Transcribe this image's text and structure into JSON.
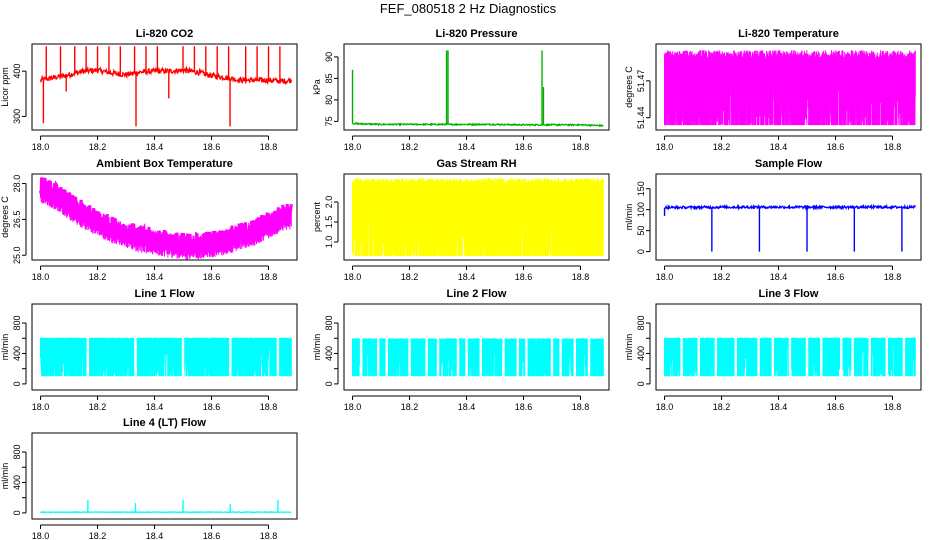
{
  "title": "FEF_080518  2 Hz Diagnostics",
  "chart_data": [
    {
      "id": "co2",
      "type": "line",
      "title": "Li-820 CO2",
      "ylabel": "Licor ppm",
      "xlim": [
        17.97,
        18.9
      ],
      "ylim": [
        270,
        460
      ],
      "xticks": [
        18.0,
        18.2,
        18.4,
        18.6,
        18.8
      ],
      "yticks": [
        300,
        400
      ],
      "color": "#ff0000",
      "series": [
        {
          "x": [
            18.0,
            18.05,
            18.1,
            18.15,
            18.2,
            18.25,
            18.3,
            18.35,
            18.4,
            18.45,
            18.5,
            18.55,
            18.6,
            18.65,
            18.7,
            18.75,
            18.8,
            18.85,
            18.88
          ],
          "values": [
            380,
            386,
            392,
            400,
            402,
            396,
            392,
            398,
            400,
            400,
            402,
            398,
            390,
            386,
            380,
            380,
            380,
            378,
            380
          ]
        }
      ],
      "spikes": [
        {
          "x": 18.01,
          "to": 285
        },
        {
          "x": 18.02,
          "to": 455
        },
        {
          "x": 18.07,
          "to": 455
        },
        {
          "x": 18.09,
          "to": 355
        },
        {
          "x": 18.12,
          "to": 455
        },
        {
          "x": 18.16,
          "to": 455
        },
        {
          "x": 18.2,
          "to": 455
        },
        {
          "x": 18.24,
          "to": 455
        },
        {
          "x": 18.28,
          "to": 455
        },
        {
          "x": 18.33,
          "to": 455
        },
        {
          "x": 18.335,
          "to": 278
        },
        {
          "x": 18.37,
          "to": 455
        },
        {
          "x": 18.41,
          "to": 455
        },
        {
          "x": 18.45,
          "to": 340
        },
        {
          "x": 18.5,
          "to": 455
        },
        {
          "x": 18.54,
          "to": 455
        },
        {
          "x": 18.58,
          "to": 455
        },
        {
          "x": 18.62,
          "to": 455
        },
        {
          "x": 18.66,
          "to": 455
        },
        {
          "x": 18.665,
          "to": 278
        },
        {
          "x": 18.72,
          "to": 455
        },
        {
          "x": 18.76,
          "to": 455
        },
        {
          "x": 18.8,
          "to": 455
        },
        {
          "x": 18.84,
          "to": 455
        }
      ],
      "noise": 6
    },
    {
      "id": "pressure",
      "type": "line",
      "title": "Li-820 Pressure",
      "ylabel": "kPa",
      "xlim": [
        17.97,
        18.9
      ],
      "ylim": [
        73,
        93
      ],
      "xticks": [
        18.0,
        18.2,
        18.4,
        18.6,
        18.8
      ],
      "yticks": [
        75,
        80,
        85,
        90
      ],
      "color": "#00b000",
      "series": [
        {
          "x": [
            18.0,
            18.1,
            18.2,
            18.3,
            18.4,
            18.5,
            18.6,
            18.7,
            18.8,
            18.88
          ],
          "values": [
            74.5,
            74.3,
            74.3,
            74.3,
            74.3,
            74.3,
            74.2,
            74.2,
            74.2,
            74.0
          ]
        }
      ],
      "spikes": [
        {
          "x": 18.0,
          "to": 87
        },
        {
          "x": 18.33,
          "to": 91.5
        },
        {
          "x": 18.335,
          "to": 91.5
        },
        {
          "x": 18.665,
          "to": 91.5
        },
        {
          "x": 18.67,
          "to": 83
        }
      ],
      "noise": 0.15
    },
    {
      "id": "licor-temp",
      "type": "line",
      "title": "Li-820 Temperature",
      "ylabel": "degrees C",
      "xlim": [
        17.97,
        18.9
      ],
      "ylim": [
        51.43,
        51.5
      ],
      "xticks": [
        18.0,
        18.2,
        18.4,
        18.6,
        18.8
      ],
      "yticks": [
        51.44,
        51.47
      ],
      "yticklabels": [
        "51.44",
        "51.47"
      ],
      "color": "#ff00ff",
      "band": {
        "low": 51.434,
        "high": 51.495,
        "mid": 51.472
      },
      "noise": 0
    },
    {
      "id": "ambient-temp",
      "type": "line",
      "title": "Ambient Box Temperature",
      "ylabel": "degrees C",
      "xlim": [
        17.97,
        18.9
      ],
      "ylim": [
        24.8,
        28.4
      ],
      "xticks": [
        18.0,
        18.2,
        18.4,
        18.6,
        18.8
      ],
      "yticks": [
        25.0,
        26.5,
        28.0
      ],
      "yticklabels": [
        "25.0",
        "26.5",
        "28.0"
      ],
      "color": "#ff00ff",
      "series": [
        {
          "x": [
            18.0,
            18.05,
            18.1,
            18.15,
            18.2,
            18.25,
            18.3,
            18.35,
            18.4,
            18.45,
            18.5,
            18.55,
            18.6,
            18.65,
            18.7,
            18.75,
            18.8,
            18.85,
            18.88
          ],
          "values": [
            27.9,
            27.6,
            27.2,
            26.8,
            26.5,
            26.2,
            26.0,
            25.8,
            25.7,
            25.6,
            25.5,
            25.5,
            25.6,
            25.7,
            25.9,
            26.1,
            26.4,
            26.7,
            26.8
          ]
        }
      ],
      "noise": 0.45
    },
    {
      "id": "gas-rh",
      "type": "line",
      "title": "Gas Stream RH",
      "ylabel": "percent",
      "xlim": [
        17.97,
        18.9
      ],
      "ylim": [
        0.55,
        2.7
      ],
      "xticks": [
        18.0,
        18.2,
        18.4,
        18.6,
        18.8
      ],
      "yticks": [
        1.0,
        1.5,
        2.0
      ],
      "yticklabels": [
        "1.0",
        "1.5",
        "2.0"
      ],
      "color": "#ffff00",
      "band": {
        "low": 0.65,
        "high": 2.6,
        "mid": 2.1
      },
      "noise": 0
    },
    {
      "id": "sample-flow",
      "type": "line",
      "title": "Sample Flow",
      "ylabel": "ml/min",
      "xlim": [
        17.97,
        18.9
      ],
      "ylim": [
        -20,
        185
      ],
      "xticks": [
        18.0,
        18.2,
        18.4,
        18.6,
        18.8
      ],
      "yticks": [
        0,
        50,
        100,
        150
      ],
      "color": "#0000ff",
      "series": [
        {
          "x": [
            18.0,
            18.2,
            18.4,
            18.6,
            18.8,
            18.88
          ],
          "values": [
            105,
            106,
            106,
            106,
            106,
            106
          ]
        }
      ],
      "spikes": [
        {
          "x": 18.0,
          "to": 85
        },
        {
          "x": 18.166,
          "to": 0
        },
        {
          "x": 18.333,
          "to": 0
        },
        {
          "x": 18.5,
          "to": 0
        },
        {
          "x": 18.666,
          "to": 0
        },
        {
          "x": 18.833,
          "to": 0
        }
      ],
      "noise": 3
    },
    {
      "id": "line1-flow",
      "type": "line",
      "title": "Line 1 Flow",
      "ylabel": "ml/min",
      "xlim": [
        17.97,
        18.9
      ],
      "ylim": [
        -80,
        1050
      ],
      "xticks": [
        18.0,
        18.2,
        18.4,
        18.6,
        18.8
      ],
      "yticks": [
        0,
        400,
        800
      ],
      "yticklabels": [
        "0",
        "400",
        "800"
      ],
      "ytickminor": [
        200,
        600
      ],
      "color": "#00ffff",
      "band": {
        "low": 100,
        "high": 610,
        "mid": 560
      },
      "gaps": [
        18.166,
        18.333,
        18.5,
        18.666,
        18.833
      ],
      "noise": 0
    },
    {
      "id": "line2-flow",
      "type": "line",
      "title": "Line 2 Flow",
      "ylabel": "ml/min",
      "xlim": [
        17.97,
        18.9
      ],
      "ylim": [
        -80,
        1050
      ],
      "xticks": [
        18.0,
        18.2,
        18.4,
        18.6,
        18.8
      ],
      "yticks": [
        0,
        400,
        800
      ],
      "yticklabels": [
        "0",
        "400",
        "800"
      ],
      "ytickminor": [
        200,
        600
      ],
      "color": "#00ffff",
      "band": {
        "low": 100,
        "high": 600,
        "mid": 560
      },
      "gaps": [
        18.03,
        18.09,
        18.12,
        18.2,
        18.26,
        18.3,
        18.37,
        18.4,
        18.45,
        18.53,
        18.58,
        18.61,
        18.7,
        18.73,
        18.78,
        18.83
      ],
      "noise": 0
    },
    {
      "id": "line3-flow",
      "type": "line",
      "title": "Line 3 Flow",
      "ylabel": "ml/min",
      "xlim": [
        17.97,
        18.9
      ],
      "ylim": [
        -80,
        1050
      ],
      "xticks": [
        18.0,
        18.2,
        18.4,
        18.6,
        18.8
      ],
      "yticks": [
        0,
        400,
        800
      ],
      "yticklabels": [
        "0",
        "400",
        "800"
      ],
      "ytickminor": [
        200,
        600
      ],
      "color": "#00ffff",
      "band": {
        "low": 100,
        "high": 610,
        "mid": 560
      },
      "gaps": [
        18.06,
        18.12,
        18.18,
        18.25,
        18.33,
        18.38,
        18.44,
        18.5,
        18.55,
        18.62,
        18.66,
        18.72,
        18.78,
        18.84
      ],
      "noise": 0
    },
    {
      "id": "line4-flow",
      "type": "line",
      "title": "Line 4 (LT) Flow",
      "ylabel": "ml/min",
      "xlim": [
        17.97,
        18.9
      ],
      "ylim": [
        -80,
        1050
      ],
      "xticks": [
        18.0,
        18.2,
        18.4,
        18.6,
        18.8
      ],
      "yticks": [
        0,
        400,
        800
      ],
      "yticklabels": [
        "0",
        "400",
        "800"
      ],
      "ytickminor": [
        200,
        600
      ],
      "color": "#00ffff",
      "series": [
        {
          "x": [
            18.0,
            18.88
          ],
          "values": [
            10,
            10
          ]
        }
      ],
      "spikes": [
        {
          "x": 18.166,
          "to": 170
        },
        {
          "x": 18.333,
          "to": 130
        },
        {
          "x": 18.5,
          "to": 170
        },
        {
          "x": 18.666,
          "to": 120
        },
        {
          "x": 18.833,
          "to": 170
        }
      ],
      "noise": 4
    }
  ]
}
